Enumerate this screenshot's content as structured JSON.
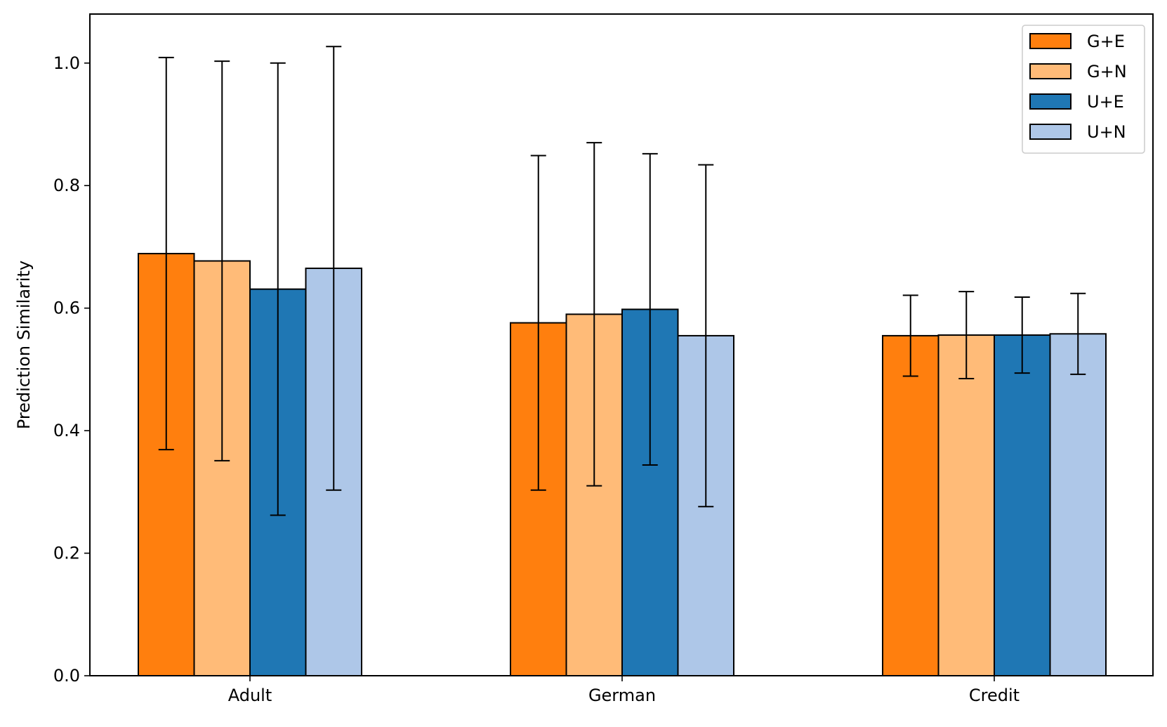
{
  "chart_data": {
    "type": "bar",
    "title": "",
    "xlabel": "",
    "ylabel": "Prediction Similarity",
    "categories": [
      "Adult",
      "German",
      "Credit"
    ],
    "ylim": [
      0,
      1.08
    ],
    "yticks": [
      0.0,
      0.2,
      0.4,
      0.6,
      0.8,
      1.0
    ],
    "ytick_labels": [
      "0.0",
      "0.2",
      "0.4",
      "0.6",
      "0.8",
      "1.0"
    ],
    "legend_position": "top-right",
    "grid": false,
    "series": [
      {
        "name": "G+E",
        "color": "#ff7f0e",
        "values": [
          0.689,
          0.576,
          0.555
        ],
        "errors": [
          0.32,
          0.273,
          0.066
        ]
      },
      {
        "name": "G+N",
        "color": "#ffbb78",
        "values": [
          0.677,
          0.59,
          0.556
        ],
        "errors": [
          0.326,
          0.28,
          0.071
        ]
      },
      {
        "name": "U+E",
        "color": "#1f77b4",
        "values": [
          0.631,
          0.598,
          0.556
        ],
        "errors": [
          0.369,
          0.254,
          0.062
        ]
      },
      {
        "name": "U+N",
        "color": "#aec7e8",
        "values": [
          0.665,
          0.555,
          0.558
        ],
        "errors": [
          0.362,
          0.279,
          0.066
        ]
      }
    ]
  }
}
